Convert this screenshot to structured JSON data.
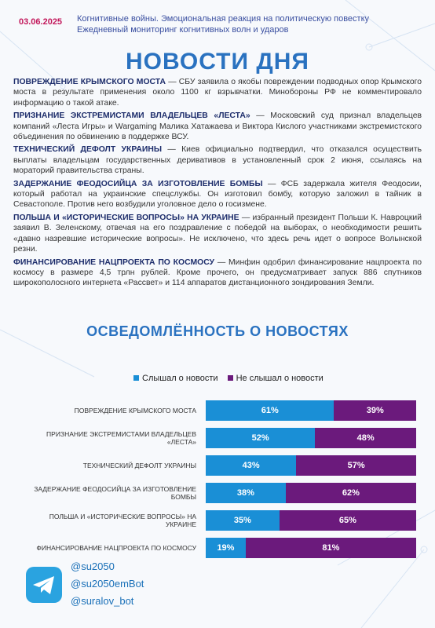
{
  "header": {
    "date": "03.06.2025",
    "lines": [
      "Когнитивные войны. Эмоциональная реакция на политическую повестку",
      "Ежедневный мониторинг когнитивных волн и ударов"
    ]
  },
  "title": "НОВОСТИ ДНЯ",
  "news": [
    {
      "headline": "ПОВРЕЖДЕНИЕ КРЫМСКОГО МОСТА",
      "text": "— СБУ заявила о якобы повреждении подводных опор Крымского моста в результате применения около 1100 кг взрывчатки. Минобороны РФ не комментировало информацию о такой атаке."
    },
    {
      "headline": "ПРИЗНАНИЕ ЭКСТРЕМИСТАМИ ВЛАДЕЛЬЦЕВ «ЛЕСТА»",
      "text": "— Московский суд признал владельцев компаний «Леста Игры» и Wargaming Малика Хатажаева и Виктора Кислого участниками экстремистского объединения по обвинению в поддержке ВСУ."
    },
    {
      "headline": "ТЕХНИЧЕСКИЙ ДЕФОЛТ УКРАИНЫ",
      "text": "— Киев официально подтвердил, что отказался осуществить выплаты владельцам государственных деривативов в установленный срок 2 июня, ссылаясь на мораторий правительства страны."
    },
    {
      "headline": "ЗАДЕРЖАНИЕ ФЕОДОСИЙЦА ЗА ИЗГОТОВЛЕНИЕ БОМБЫ",
      "text": "— ФСБ задержала жителя Феодосии, который работал на украинские спецслужбы. Он изготовил бомбу, которую заложил в тайник в Севастополе. Против него возбудили уголовное дело о госизмене."
    },
    {
      "headline": "ПОЛЬША И «ИСТОРИЧЕСКИЕ ВОПРОСЫ» НА УКРАИНЕ",
      "text": "— избранный президент Польши К. Навроцкий заявил В. Зеленскому, отвечая на его поздравление с победой на выборах, о необходимости решить «давно назревшие исторические вопросы». Не исключено, что здесь речь идет о вопросе Волынской резни."
    },
    {
      "headline": "ФИНАНСИРОВАНИЕ НАЦПРОЕКТА ПО КОСМОСУ",
      "text": "— Минфин одобрил финансирование нацпроекта по космосу в размере 4,5 трлн рублей. Кроме прочего, он предусматривает запуск 886 спутников широкополосного интернета «Рассвет» и 114 аппаратов дистанционного зондирования Земли."
    }
  ],
  "chart_data": {
    "type": "stacked-barh",
    "title": "ОСВЕДОМЛЁННОСТЬ О НОВОСТЯХ",
    "categories": [
      "ПОВРЕЖДЕНИЕ КРЫМСКОГО МОСТА",
      "ПРИЗНАНИЕ ЭКСТРЕМИСТАМИ ВЛАДЕЛЬЦЕВ «ЛЕСТА»",
      "ТЕХНИЧЕСКИЙ ДЕФОЛТ УКРАИНЫ",
      "ЗАДЕРЖАНИЕ ФЕОДОСИЙЦА ЗА ИЗГОТОВЛЕНИЕ БОМБЫ",
      "ПОЛЬША И «ИСТОРИЧЕСКИЕ ВОПРОСЫ» НА УКРАИНЕ",
      "ФИНАНСИРОВАНИЕ НАЦПРОЕКТА ПО КОСМОСУ"
    ],
    "xlim": [
      0,
      100
    ],
    "series": [
      {
        "name": "Слышал о новости",
        "color": "#1a8fd6",
        "values": [
          61,
          52,
          43,
          38,
          35,
          19
        ],
        "value_labels": [
          "61%",
          "52%",
          "43%",
          "38%",
          "35%",
          "19%"
        ]
      },
      {
        "name": "Не слышал о новости",
        "color": "#6b1a7c",
        "values": [
          39,
          48,
          57,
          62,
          65,
          81
        ],
        "value_labels": [
          "39%",
          "48%",
          "57%",
          "62%",
          "65%",
          "81%"
        ]
      }
    ]
  },
  "footer": {
    "contacts": [
      "@su2050",
      "@su2050emBot",
      "@suralov_bot"
    ]
  }
}
